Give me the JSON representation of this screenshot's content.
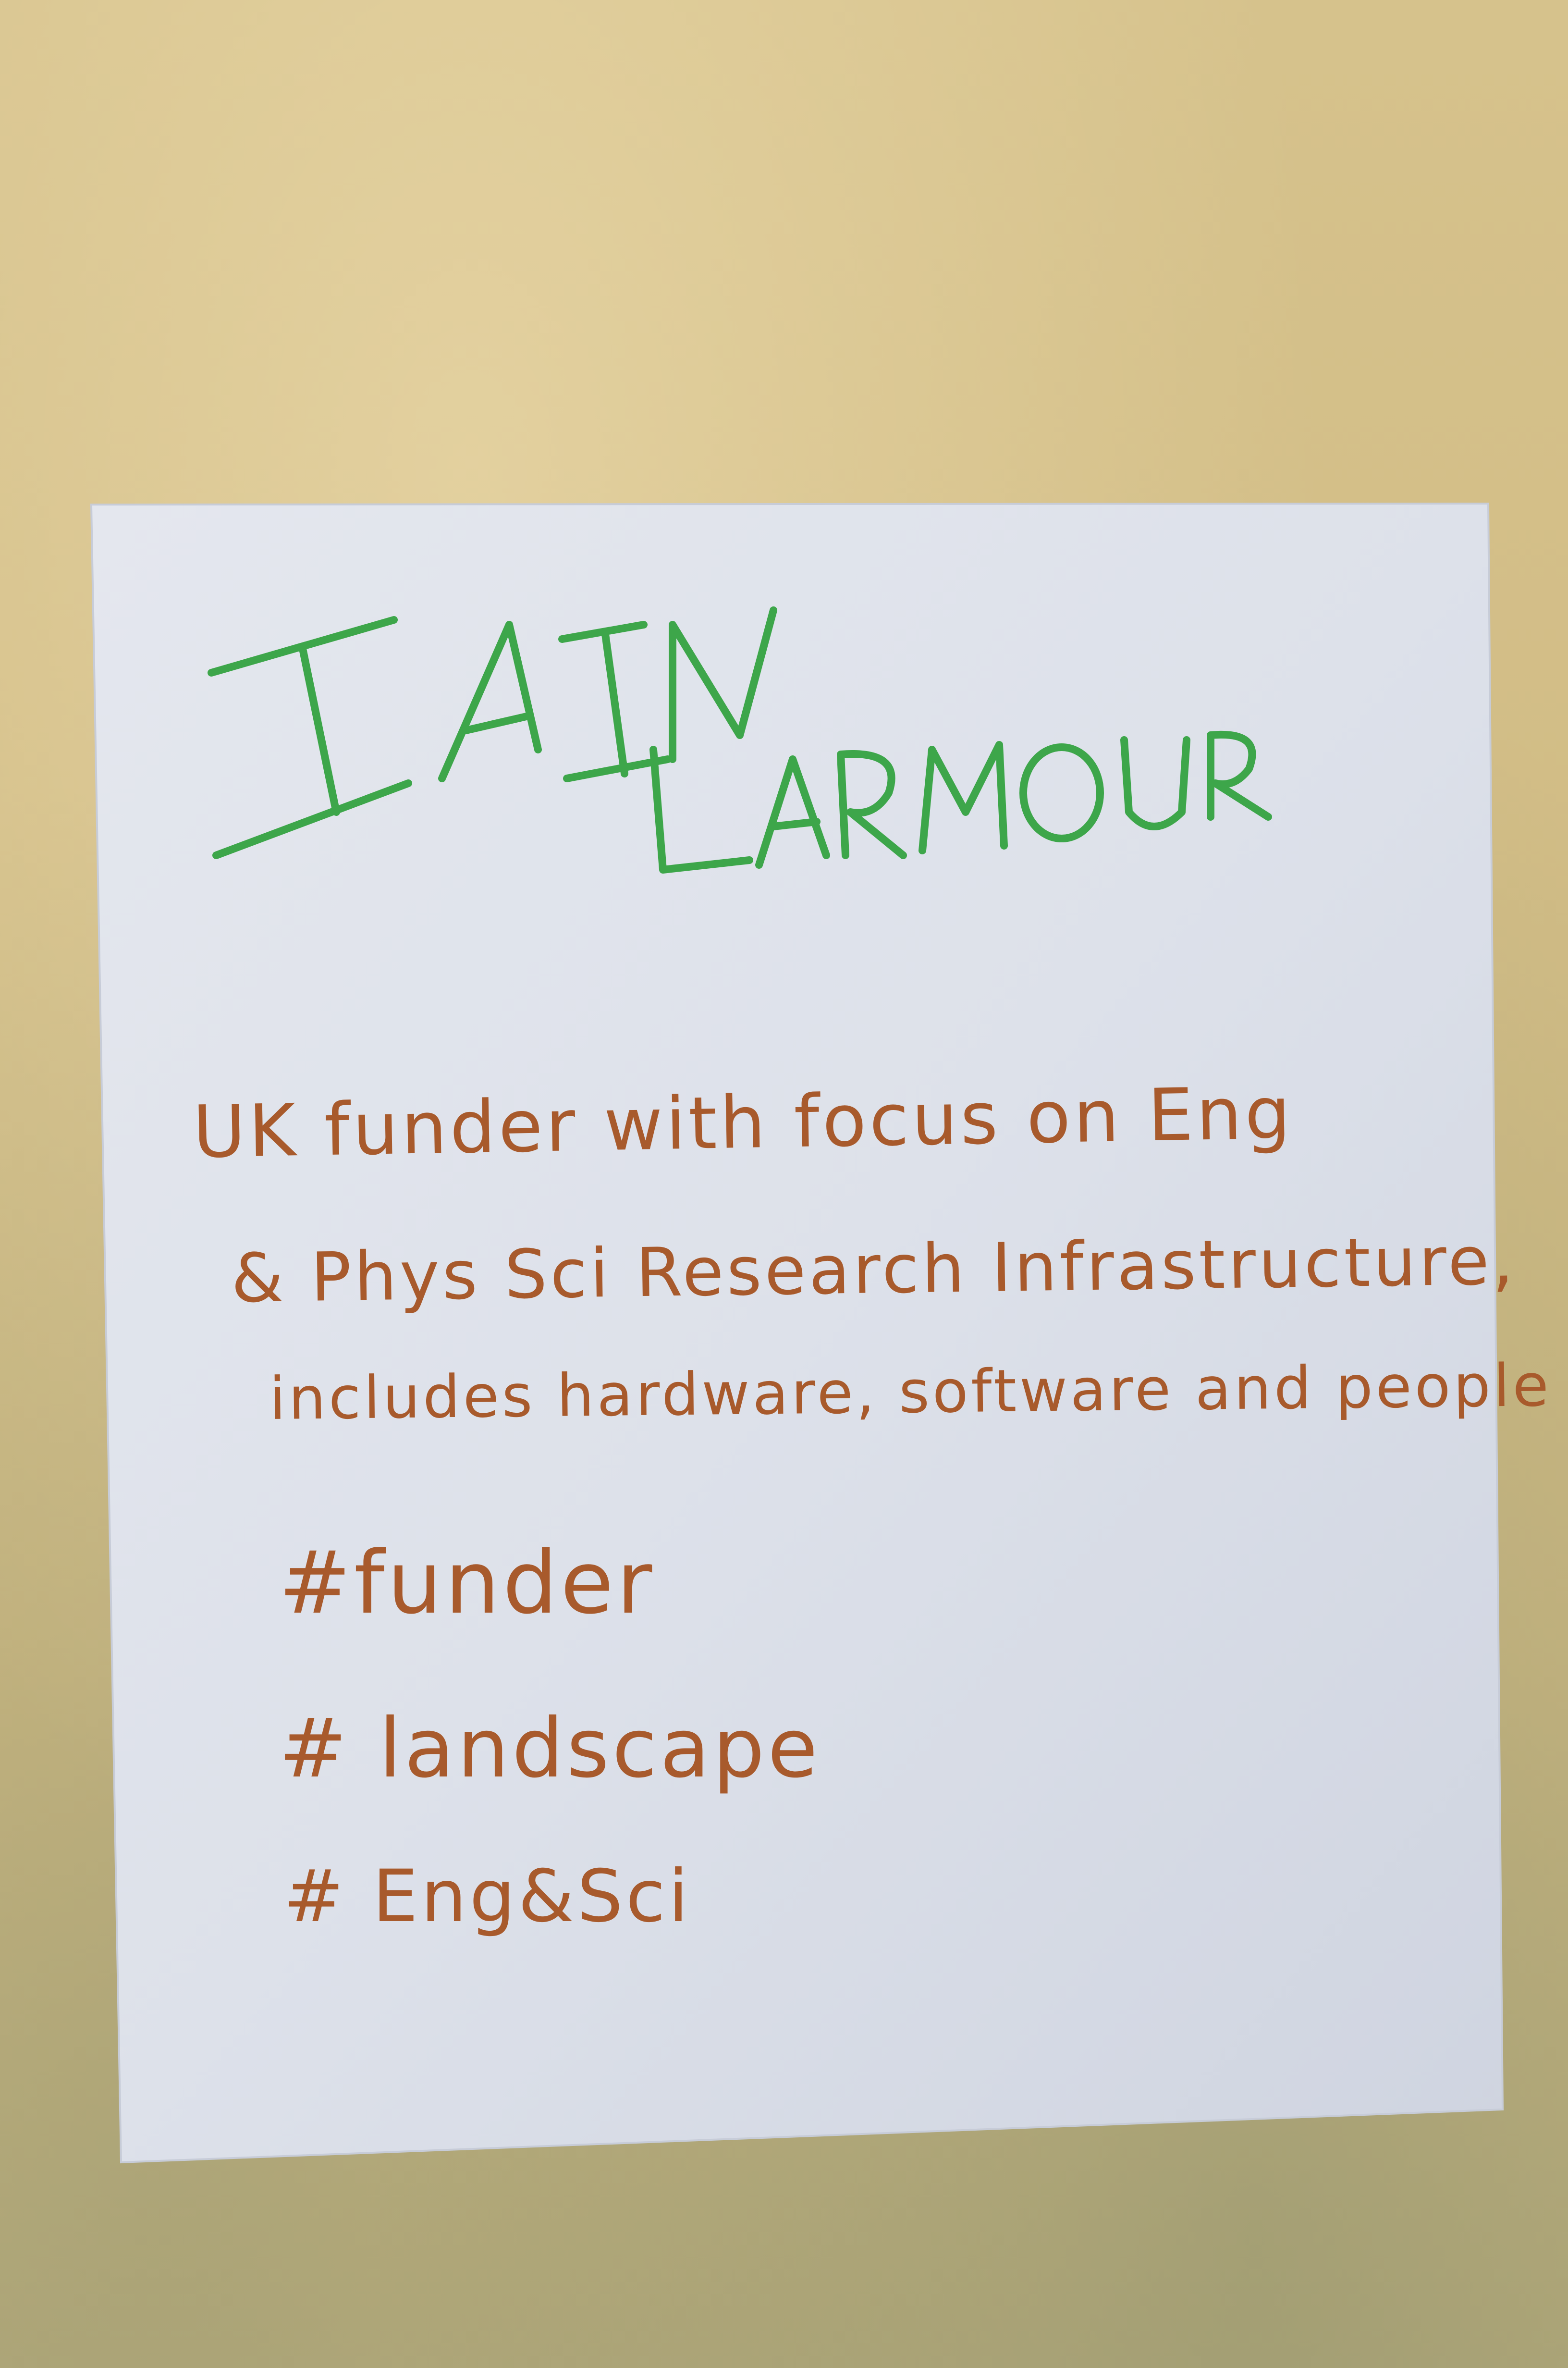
{
  "poster": {
    "name_first": "IAIN",
    "name_last": "LARMOUR",
    "description_lines": [
      "UK funder with focus on Eng",
      "& Phys Sci Research Infrastructure,",
      "includes hardware, software and people"
    ],
    "hashtags": [
      "#funder",
      "# landscape",
      "# Eng&Sci"
    ],
    "colors": {
      "name_ink": "#3da64a",
      "body_ink": "#a85a2c",
      "paper": "#dfe3ee",
      "wall": "#d3bf88"
    }
  }
}
